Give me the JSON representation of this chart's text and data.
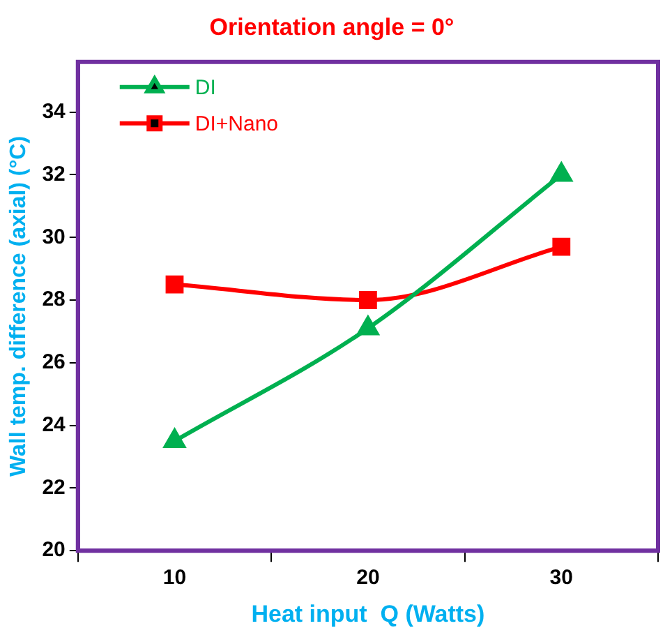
{
  "chart_data": {
    "type": "line",
    "title": "Orientation angle = 0°",
    "xlabel": "Heat input  Q (Watts)",
    "ylabel": "Wall temp. difference (axial) (°C)",
    "categories": [
      "10",
      "20",
      "30"
    ],
    "series": [
      {
        "name": "DI",
        "color": "#00b050",
        "values": [
          23.5,
          27.1,
          32.0
        ],
        "marker": "triangle"
      },
      {
        "name": "DI+Nano",
        "color": "#ff0000",
        "values": [
          28.5,
          28.0,
          29.7
        ],
        "marker": "square"
      }
    ],
    "ylim": [
      20,
      35.6
    ],
    "yticks": [
      20,
      22,
      24,
      26,
      28,
      30,
      32,
      34
    ],
    "grid": false,
    "legend": "top left",
    "line_style": "solid"
  }
}
